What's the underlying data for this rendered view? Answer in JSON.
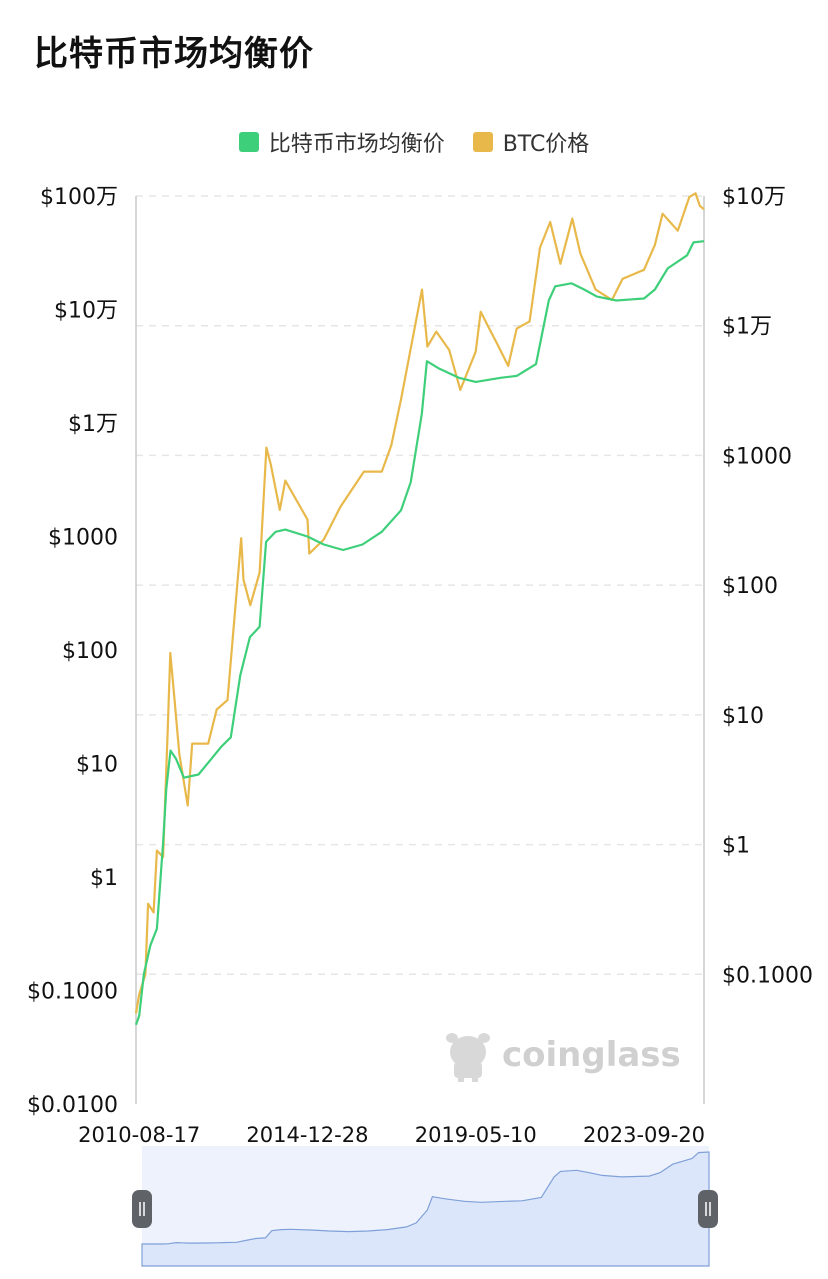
{
  "page": {
    "title": "比特币市场均衡价"
  },
  "colors": {
    "equilibrium": "#3ecf7a",
    "btc": "#e8b94a",
    "navigator_fill": "#dce6fb",
    "navigator_line": "#7fa0d8",
    "grid": "#e6e6e6"
  },
  "legend": [
    {
      "label": "比特币市场均衡价",
      "color": "#3ecf7a",
      "icon": "square-swatch"
    },
    {
      "label": "BTC价格",
      "color": "#e8b94a",
      "icon": "square-swatch"
    }
  ],
  "watermark": {
    "text": "coinglass",
    "icon": "coinglass-logo-icon"
  },
  "chart_data": {
    "type": "line",
    "title": "比特币市场均衡价",
    "y_scale": "log",
    "y_left_ticks": [
      "$0.0100",
      "$0.1000",
      "$1",
      "$10",
      "$100",
      "$1000",
      "$1万",
      "$10万",
      "$100万"
    ],
    "y_right_ticks": [
      "$0.1000",
      "$1",
      "$10",
      "$100",
      "$1000",
      "$1万",
      "$10万"
    ],
    "y_left_range": [
      0.01,
      1000000
    ],
    "y_right_range": [
      0.01,
      100000
    ],
    "x_ticks": [
      "2010-08-17",
      "2014-12-28",
      "2019-05-10",
      "2023-09-20"
    ],
    "x_range": [
      "2010-07-18",
      "2025-04-10"
    ],
    "grid": "horizontal dashed",
    "legend_position": "top-center",
    "series": [
      {
        "name": "比特币市场均衡价",
        "axis": "left",
        "color": "#3ecf7a",
        "points": [
          [
            "2010-07-18",
            0.05
          ],
          [
            "2010-08-17",
            0.06
          ],
          [
            "2010-10-01",
            0.14
          ],
          [
            "2010-12-01",
            0.25
          ],
          [
            "2011-02-01",
            0.35
          ],
          [
            "2011-04-01",
            2.0
          ],
          [
            "2011-05-01",
            6.0
          ],
          [
            "2011-06-10",
            13.0
          ],
          [
            "2011-08-01",
            11.0
          ],
          [
            "2011-10-15",
            7.5
          ],
          [
            "2012-03-01",
            8.0
          ],
          [
            "2012-07-01",
            11.0
          ],
          [
            "2012-10-01",
            14.0
          ],
          [
            "2013-01-01",
            17.0
          ],
          [
            "2013-04-01",
            60.0
          ],
          [
            "2013-07-01",
            130.0
          ],
          [
            "2013-10-01",
            160.0
          ],
          [
            "2013-12-01",
            900.0
          ],
          [
            "2014-03-01",
            1100.0
          ],
          [
            "2014-06-01",
            1150.0
          ],
          [
            "2014-12-28",
            1000.0
          ],
          [
            "2015-06-01",
            850.0
          ],
          [
            "2015-12-01",
            760.0
          ],
          [
            "2016-06-01",
            850.0
          ],
          [
            "2016-12-01",
            1100.0
          ],
          [
            "2017-06-01",
            1700.0
          ],
          [
            "2017-09-01",
            3000.0
          ],
          [
            "2017-12-15",
            12000.0
          ],
          [
            "2018-02-01",
            35000.0
          ],
          [
            "2018-06-01",
            30000.0
          ],
          [
            "2018-12-01",
            25000.0
          ],
          [
            "2019-05-10",
            23000.0
          ],
          [
            "2020-01-01",
            25000.0
          ],
          [
            "2020-06-01",
            26000.0
          ],
          [
            "2020-12-01",
            33000.0
          ],
          [
            "2021-04-01",
            120000.0
          ],
          [
            "2021-06-01",
            160000.0
          ],
          [
            "2021-11-01",
            170000.0
          ],
          [
            "2022-03-01",
            150000.0
          ],
          [
            "2022-07-01",
            130000.0
          ],
          [
            "2023-01-01",
            120000.0
          ],
          [
            "2023-09-20",
            125000.0
          ],
          [
            "2024-01-01",
            150000.0
          ],
          [
            "2024-05-01",
            230000.0
          ],
          [
            "2024-11-01",
            300000.0
          ],
          [
            "2025-01-01",
            390000.0
          ],
          [
            "2025-04-10",
            400000.0
          ]
        ]
      },
      {
        "name": "BTC价格",
        "axis": "right",
        "color": "#e8b94a",
        "points": [
          [
            "2010-07-18",
            0.05
          ],
          [
            "2010-08-17",
            0.07
          ],
          [
            "2010-10-15",
            0.1
          ],
          [
            "2010-11-10",
            0.35
          ],
          [
            "2011-01-01",
            0.3
          ],
          [
            "2011-02-01",
            0.9
          ],
          [
            "2011-04-01",
            0.8
          ],
          [
            "2011-05-15",
            8.0
          ],
          [
            "2011-06-08",
            30.0
          ],
          [
            "2011-07-15",
            14.0
          ],
          [
            "2011-09-01",
            5.0
          ],
          [
            "2011-11-20",
            2.0
          ],
          [
            "2012-01-01",
            6.0
          ],
          [
            "2012-06-01",
            6.0
          ],
          [
            "2012-08-20",
            11.0
          ],
          [
            "2012-12-01",
            13.0
          ],
          [
            "2013-04-09",
            230.0
          ],
          [
            "2013-05-01",
            110.0
          ],
          [
            "2013-07-05",
            70.0
          ],
          [
            "2013-10-01",
            125.0
          ],
          [
            "2013-12-04",
            1150.0
          ],
          [
            "2014-01-15",
            850.0
          ],
          [
            "2014-04-10",
            380.0
          ],
          [
            "2014-06-01",
            640.0
          ],
          [
            "2014-12-28",
            320.0
          ],
          [
            "2015-01-14",
            175.0
          ],
          [
            "2015-06-01",
            225.0
          ],
          [
            "2015-11-04",
            400.0
          ],
          [
            "2016-06-15",
            750.0
          ],
          [
            "2016-12-01",
            750.0
          ],
          [
            "2017-03-01",
            1200.0
          ],
          [
            "2017-06-01",
            2700.0
          ],
          [
            "2017-12-17",
            19000.0
          ],
          [
            "2018-02-06",
            6900.0
          ],
          [
            "2018-05-01",
            9000.0
          ],
          [
            "2018-09-01",
            6500.0
          ],
          [
            "2018-12-15",
            3200.0
          ],
          [
            "2019-05-10",
            6300.0
          ],
          [
            "2019-06-26",
            12800.0
          ],
          [
            "2019-09-01",
            10000.0
          ],
          [
            "2019-12-01",
            7200.0
          ],
          [
            "2020-03-12",
            4900.0
          ],
          [
            "2020-06-01",
            9500.0
          ],
          [
            "2020-10-01",
            10800.0
          ],
          [
            "2021-01-08",
            40000.0
          ],
          [
            "2021-04-14",
            63000.0
          ],
          [
            "2021-07-20",
            30000.0
          ],
          [
            "2021-11-10",
            67000.0
          ],
          [
            "2022-01-25",
            36000.0
          ],
          [
            "2022-06-18",
            19000.0
          ],
          [
            "2022-11-21",
            15800.0
          ],
          [
            "2023-03-01",
            23000.0
          ],
          [
            "2023-06-15",
            25000.0
          ],
          [
            "2023-09-20",
            27000.0
          ],
          [
            "2024-01-01",
            42000.0
          ],
          [
            "2024-03-14",
            73000.0
          ],
          [
            "2024-08-05",
            54000.0
          ],
          [
            "2024-11-22",
            98000.0
          ],
          [
            "2025-01-20",
            105000.0
          ],
          [
            "2025-03-01",
            84000.0
          ],
          [
            "2025-04-10",
            79000.0
          ]
        ]
      }
    ],
    "navigator": {
      "type": "area",
      "range": [
        "2010-07-18",
        "2025-04-10"
      ]
    }
  }
}
